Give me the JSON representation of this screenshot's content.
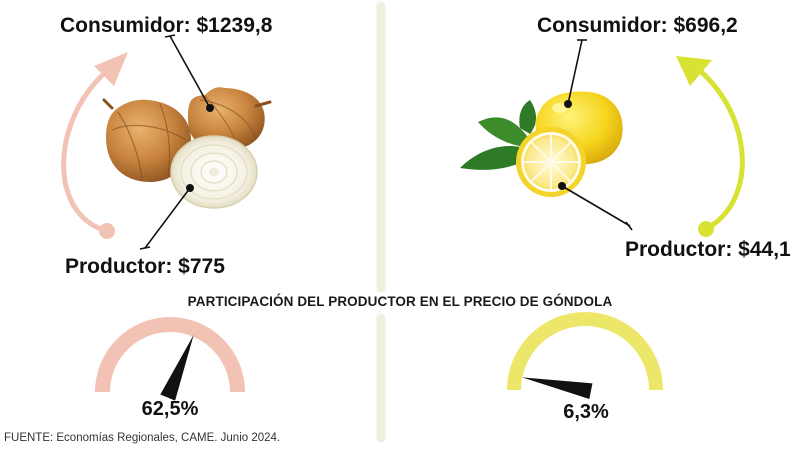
{
  "colors": {
    "onion_accent": "#f2c3b5",
    "lemon_accent": "#ece769",
    "lemon_arrow": "#d8e233",
    "divider": "#f1f0de",
    "needle": "#111111"
  },
  "onion": {
    "consumer_label": "Consumidor: $1239,8",
    "producer_label": "Productor: $775",
    "share_value": 62.5,
    "share_text": "62,5%",
    "image": "onion-illustration"
  },
  "lemon": {
    "consumer_label": "Consumidor: $696,2",
    "producer_label": "Productor: $44,1",
    "share_value": 6.3,
    "share_text": "6,3%",
    "image": "lemon-illustration"
  },
  "middle_title": "PARTICIPACIÓN DEL PRODUCTOR EN EL PRECIO DE GÓNDOLA",
  "source": "FUENTE: Economías Regionales, CAME. Junio 2024."
}
